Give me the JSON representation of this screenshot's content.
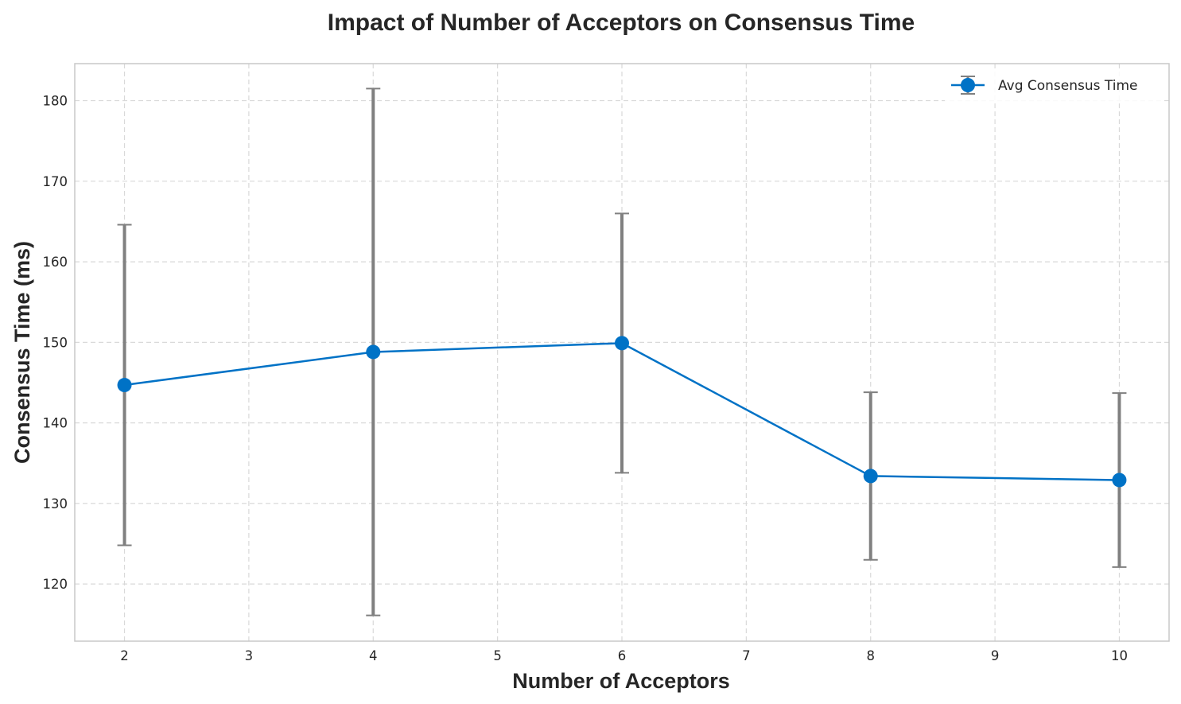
{
  "chart_data": {
    "type": "line",
    "title": "Impact of Number of Acceptors on Consensus Time",
    "xlabel": "Number of Acceptors",
    "ylabel": "Consensus Time (ms)",
    "xlim": [
      1.6,
      10.4
    ],
    "ylim": [
      112.9,
      184.6
    ],
    "xticks": [
      2,
      3,
      4,
      5,
      6,
      7,
      8,
      9,
      10
    ],
    "yticks": [
      120,
      130,
      140,
      150,
      160,
      170,
      180
    ],
    "grid": true,
    "legend_position": "top-right",
    "series": [
      {
        "name": "Avg Consensus Time",
        "color": "#0072c6",
        "error_color": "#808080",
        "x": [
          2,
          4,
          6,
          8,
          10
        ],
        "y": [
          144.7,
          148.8,
          149.9,
          133.4,
          132.9
        ],
        "error": [
          19.9,
          32.7,
          16.1,
          10.4,
          10.8
        ]
      }
    ]
  }
}
